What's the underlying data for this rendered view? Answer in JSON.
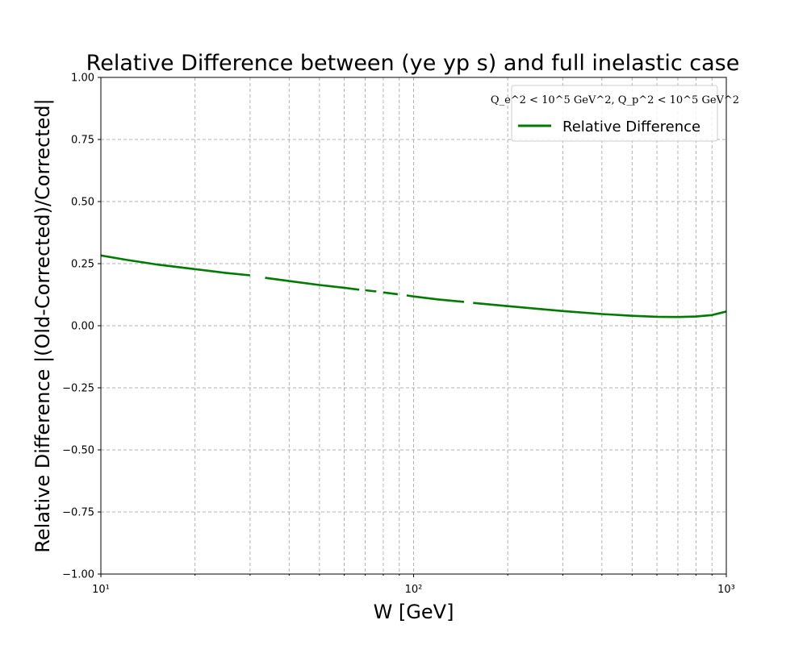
{
  "chart_data": {
    "type": "line",
    "title": "Relative Difference between (ye yp s) and full inelastic case",
    "xlabel": "W [GeV]",
    "ylabel": "Relative Difference |(Old-Corrected)/Corrected|",
    "xscale": "log",
    "xlim": [
      10,
      1000
    ],
    "ylim": [
      -1.0,
      1.0
    ],
    "grid": true,
    "legend_position": "top-right",
    "legend_title": "Q_e^2 < 10^5 GeV^2, Q_p^2 < 10^5 GeV^2",
    "x_ticks": [
      10,
      100,
      1000
    ],
    "x_tick_labels": [
      "10¹",
      "10²",
      "10³"
    ],
    "y_ticks": [
      -1.0,
      -0.75,
      -0.5,
      -0.25,
      0.0,
      0.25,
      0.5,
      0.75,
      1.0
    ],
    "y_tick_labels": [
      "−1.00",
      "−0.75",
      "−0.50",
      "−0.25",
      "0.00",
      "0.25",
      "0.50",
      "0.75",
      "1.00"
    ],
    "series": [
      {
        "name": "Relative Difference",
        "color": "#007a00",
        "segments": [
          {
            "x": [
              10,
              12,
              15,
              20,
              25,
              30
            ],
            "y": [
              0.283,
              0.266,
              0.247,
              0.228,
              0.213,
              0.203
            ]
          },
          {
            "x": [
              33.5,
              40,
              50,
              60,
              67
            ],
            "y": [
              0.193,
              0.18,
              0.164,
              0.153,
              0.145
            ]
          },
          {
            "x": [
              70,
              76
            ],
            "y": [
              0.143,
              0.138
            ]
          },
          {
            "x": [
              80,
              89
            ],
            "y": [
              0.134,
              0.127
            ]
          },
          {
            "x": [
              95,
              100,
              120,
              145
            ],
            "y": [
              0.122,
              0.118,
              0.106,
              0.096
            ]
          },
          {
            "x": [
              155,
              200,
              250,
              300,
              400,
              500,
              600,
              700,
              800,
              900,
              1000
            ],
            "y": [
              0.092,
              0.079,
              0.068,
              0.059,
              0.047,
              0.04,
              0.036,
              0.035,
              0.037,
              0.043,
              0.057
            ]
          }
        ]
      }
    ]
  }
}
